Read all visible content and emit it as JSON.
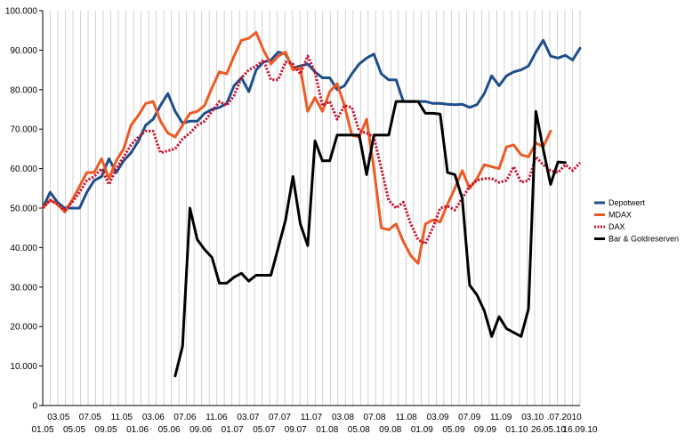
{
  "chart_data": {
    "type": "line",
    "title": "",
    "xlabel": "",
    "ylabel": "",
    "ylim": [
      0,
      100000
    ],
    "yticks": [
      0,
      10000,
      20000,
      30000,
      40000,
      50000,
      60000,
      70000,
      80000,
      90000,
      100000
    ],
    "ytick_labels": [
      "0",
      "10.000",
      "20.000",
      "30.000",
      "40.000",
      "50.000",
      "60.000",
      "70.000",
      "80.000",
      "90.000",
      "100.000"
    ],
    "grid": "vertical",
    "legend_position": "right",
    "x_labels_upper": [
      "03.05",
      "07.05",
      "11.05",
      "03.06",
      "07.06",
      "11.06",
      "03.07",
      "07.07",
      "11.07",
      "03.08",
      "07.08",
      "11.08",
      "03.09",
      "07.09",
      "11.09",
      "03.10",
      ".07.2010"
    ],
    "x_labels_lower": [
      "01.05",
      "05.05",
      "09.05",
      "01.06",
      "05.06",
      "09.06",
      "01.07",
      "05.07",
      "09.07",
      "01.08",
      "05.08",
      "09.08",
      "01.09",
      "05.09",
      "09.09",
      "01.10",
      "26.05.10",
      "16.09.10"
    ],
    "series": [
      {
        "name": "Depotwert",
        "color": "#1f4e8c",
        "style": "solid",
        "values": [
          50000,
          54000,
          51500,
          50000,
          50000,
          50000,
          54000,
          57000,
          58000,
          62500,
          59000,
          62000,
          64000,
          67000,
          71000,
          72500,
          76000,
          79000,
          74500,
          71500,
          72000,
          72000,
          74000,
          75000,
          75500,
          76500,
          81000,
          83000,
          79500,
          85000,
          87000,
          87500,
          89500,
          89000,
          85500,
          86000,
          86500,
          84500,
          83000,
          83000,
          80000,
          81000,
          84000,
          86500,
          88000,
          89000,
          84000,
          82500,
          82500,
          77000,
          77000,
          77000,
          77000,
          76500,
          76500,
          76300,
          76200,
          76300,
          75500,
          76200,
          79000,
          83500,
          81000,
          83500,
          84500,
          85000,
          86000,
          89500,
          92500,
          88500,
          88000,
          88700,
          87500,
          90500
        ]
      },
      {
        "name": "MDAX",
        "color": "#ee5a24",
        "style": "solid",
        "values": [
          50000,
          52000,
          51000,
          49000,
          52000,
          55500,
          59000,
          59000,
          62500,
          57500,
          62000,
          65000,
          71000,
          73500,
          76500,
          77000,
          72000,
          69000,
          68000,
          71000,
          74000,
          74500,
          76000,
          80500,
          84500,
          84000,
          88500,
          92500,
          93000,
          94500,
          90000,
          86500,
          88500,
          89500,
          85000,
          85500,
          74500,
          78000,
          74500,
          79500,
          81500,
          76000,
          68500,
          68000,
          72500,
          60000,
          45000,
          44500,
          46000,
          41500,
          38000,
          36000,
          46000,
          47000,
          46500,
          51000,
          55000,
          59500,
          55000,
          57500,
          61000,
          60500,
          60000,
          65500,
          66000,
          63500,
          63000,
          66500,
          65500,
          69500
        ]
      },
      {
        "name": "DAX",
        "color": "#c8102e",
        "style": "dotted",
        "values": [
          50000,
          52000,
          51000,
          49500,
          51500,
          54000,
          57000,
          58000,
          60000,
          56000,
          60000,
          63000,
          66000,
          68000,
          69500,
          69500,
          64000,
          64500,
          65000,
          67500,
          69000,
          71000,
          72000,
          74500,
          77000,
          76000,
          78500,
          83000,
          85000,
          86000,
          87500,
          82500,
          82500,
          87000,
          86500,
          84000,
          88500,
          84500,
          76000,
          77000,
          72500,
          76000,
          75500,
          69500,
          69000,
          68000,
          60000,
          52000,
          50000,
          51500,
          46000,
          42000,
          41000,
          45000,
          50000,
          50500,
          49500,
          52500,
          55500,
          57000,
          57500,
          57500,
          56500,
          57000,
          60500,
          56500,
          57000,
          63000,
          61000,
          59500,
          59000,
          61000,
          59500,
          61500
        ]
      },
      {
        "name": "Bar & Goldreserven",
        "color": "#000000",
        "style": "solid",
        "start_index": 18,
        "values": [
          7500,
          15000,
          50000,
          42000,
          39500,
          37500,
          31000,
          31000,
          32500,
          33500,
          31500,
          33000,
          33000,
          33000,
          40000,
          47000,
          58000,
          46000,
          40500,
          67000,
          62000,
          62000,
          68500,
          68500,
          68500,
          68500,
          58500,
          68500,
          68500,
          68500,
          77000,
          77000,
          77000,
          77000,
          74000,
          74000,
          73800,
          59000,
          58500,
          52500,
          30500,
          28000,
          24000,
          17500,
          22500,
          19500,
          18500,
          17500,
          24500,
          74500,
          65000,
          56000,
          61700,
          61500
        ]
      }
    ]
  }
}
